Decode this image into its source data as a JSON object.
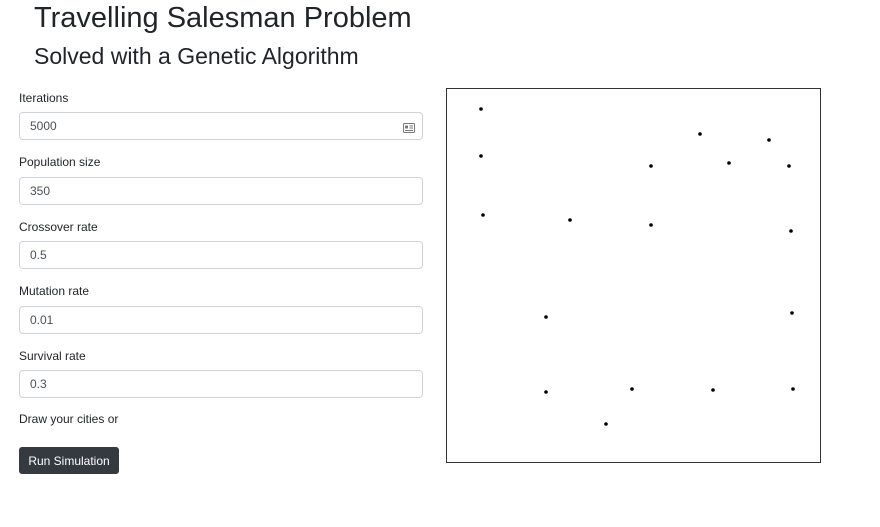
{
  "header": {
    "title": "Travelling Salesman Problem",
    "subtitle": "Solved with a Genetic Algorithm"
  },
  "form": {
    "iterations": {
      "label": "Iterations",
      "value": "5000"
    },
    "population": {
      "label": "Population size",
      "value": "350"
    },
    "crossover": {
      "label": "Crossover rate",
      "value": "0.5"
    },
    "mutation": {
      "label": "Mutation rate",
      "value": "0.01"
    },
    "survival": {
      "label": "Survival rate",
      "value": "0.3"
    },
    "draw_prompt": "Draw your cities or",
    "run_label": "Run Simulation"
  },
  "icons": {
    "autofill": "contact-card-icon"
  }
}
